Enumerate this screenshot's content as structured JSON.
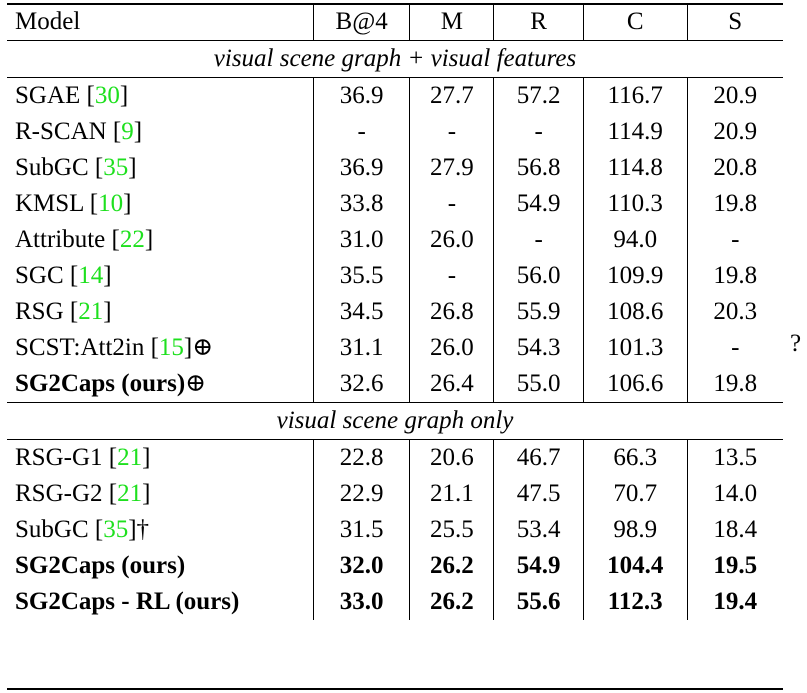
{
  "headers": [
    "Model",
    "B@4",
    "M",
    "R",
    "C",
    "S"
  ],
  "sections": [
    {
      "title": "visual scene graph + visual features",
      "rows": [
        {
          "name": "SGAE [",
          "cite": "30",
          "suffix": "]",
          "values": [
            "36.9",
            "27.7",
            "57.2",
            "116.7",
            "20.9"
          ],
          "bold": false
        },
        {
          "name": "R-SCAN [",
          "cite": "9",
          "suffix": "]",
          "values": [
            "-",
            "-",
            "-",
            "114.9",
            "20.9"
          ],
          "bold": false
        },
        {
          "name": "SubGC [",
          "cite": "35",
          "suffix": "]",
          "values": [
            "36.9",
            "27.9",
            "56.8",
            "114.8",
            "20.8"
          ],
          "bold": false
        },
        {
          "name": "KMSL [",
          "cite": "10",
          "suffix": "]",
          "values": [
            "33.8",
            "-",
            "54.9",
            "110.3",
            "19.8"
          ],
          "bold": false
        },
        {
          "name": "Attribute [",
          "cite": "22",
          "suffix": "]",
          "values": [
            "31.0",
            "26.0",
            "-",
            "94.0",
            "-"
          ],
          "bold": false
        },
        {
          "name": "SGC [",
          "cite": "14",
          "suffix": "]",
          "values": [
            "35.5",
            "-",
            "56.0",
            "109.9",
            "19.8"
          ],
          "bold": false
        },
        {
          "name": "RSG [",
          "cite": "21",
          "suffix": "]",
          "values": [
            "34.5",
            "26.8",
            "55.9",
            "108.6",
            "20.3"
          ],
          "bold": false
        },
        {
          "name": "SCST:Att2in [",
          "cite": "15",
          "suffix": "]⊕",
          "values": [
            "31.1",
            "26.0",
            "54.3",
            "101.3",
            "-"
          ],
          "bold": false
        },
        {
          "name": "SG2Caps (ours)",
          "cite": "",
          "suffix": "⊕",
          "values": [
            "32.6",
            "26.4",
            "55.0",
            "106.6",
            "19.8"
          ],
          "bold": false,
          "name_bold": true
        }
      ]
    },
    {
      "title": "visual scene graph only",
      "rows": [
        {
          "name": "RSG-G1 [",
          "cite": "21",
          "suffix": "]",
          "values": [
            "22.8",
            "20.6",
            "46.7",
            "66.3",
            "13.5"
          ],
          "bold": false
        },
        {
          "name": "RSG-G2 [",
          "cite": "21",
          "suffix": "]",
          "values": [
            "22.9",
            "21.1",
            "47.5",
            "70.7",
            "14.0"
          ],
          "bold": false
        },
        {
          "name": "SubGC [",
          "cite": "35",
          "suffix": "]†",
          "values": [
            "31.5",
            "25.5",
            "53.4",
            "98.9",
            "18.4"
          ],
          "bold": false
        },
        {
          "name": "SG2Caps (ours)",
          "cite": "",
          "suffix": "",
          "values": [
            "32.0",
            "26.2",
            "54.9",
            "104.4",
            "19.5"
          ],
          "bold": true
        },
        {
          "name": "SG2Caps - RL (ours)",
          "cite": "",
          "suffix": "",
          "values": [
            "33.0",
            "26.2",
            "55.6",
            "112.3",
            "19.4"
          ],
          "bold": true
        }
      ]
    }
  ],
  "side_mark": "?"
}
